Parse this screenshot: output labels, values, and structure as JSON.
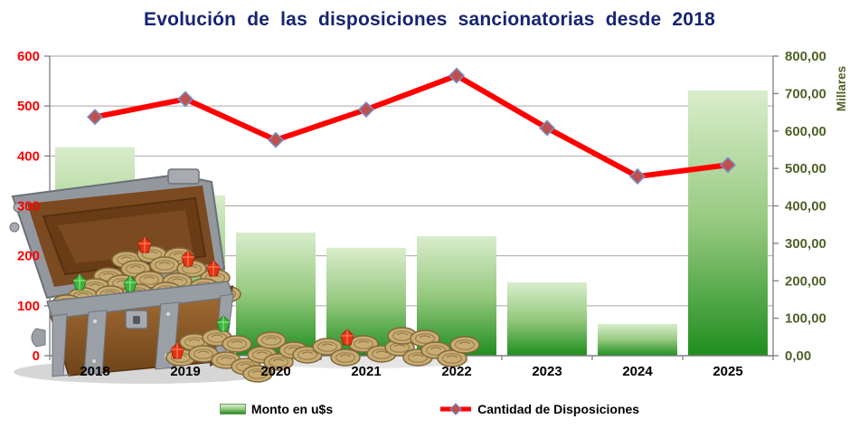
{
  "title": "Evolución de las disposiciones sancionatorias desde 2018",
  "chart_data": {
    "type": "bar+line combo",
    "title": "Evolución de las disposiciones sancionatorias desde 2018",
    "categories": [
      "2018",
      "2019",
      "2020",
      "2021",
      "2022",
      "2023",
      "2024",
      "2025"
    ],
    "series": [
      {
        "name": "Monto en u$s",
        "type": "bar",
        "axis": "right",
        "values": [
          557,
          428,
          329,
          288,
          319,
          196,
          85,
          708
        ]
      },
      {
        "name": "Cantidad de Disposiciones",
        "type": "line",
        "axis": "left",
        "values": [
          478,
          514,
          432,
          493,
          561,
          456,
          359,
          382
        ]
      }
    ],
    "left_axis": {
      "min": 0,
      "max": 600,
      "step": 100,
      "label": "",
      "tick_labels": [
        "0",
        "100",
        "200",
        "300",
        "400",
        "500",
        "600"
      ]
    },
    "right_axis": {
      "min": 0,
      "max": 800,
      "step": 100,
      "label": "Millares",
      "tick_labels": [
        "0,00",
        "100,00",
        "200,00",
        "300,00",
        "400,00",
        "500,00",
        "600,00",
        "700,00",
        "800,00"
      ]
    },
    "grid": true,
    "legend_position": "bottom"
  },
  "colors": {
    "title_text": "#172472",
    "left_axis_text": "#ff0000",
    "right_axis_text": "#4f6228",
    "category_text": "#000000",
    "gridline": "#a6a6a6",
    "axis_line": "#7f7f7f",
    "bar_gradient_top": "#d9edcc",
    "bar_gradient_bottom": "#1f8e1f",
    "line": "#ff0000",
    "marker_fill": "#c0504d",
    "marker_border": "#7591c8"
  },
  "decoration": {
    "illustration": "treasure-chest-with-coins-and-gems"
  }
}
